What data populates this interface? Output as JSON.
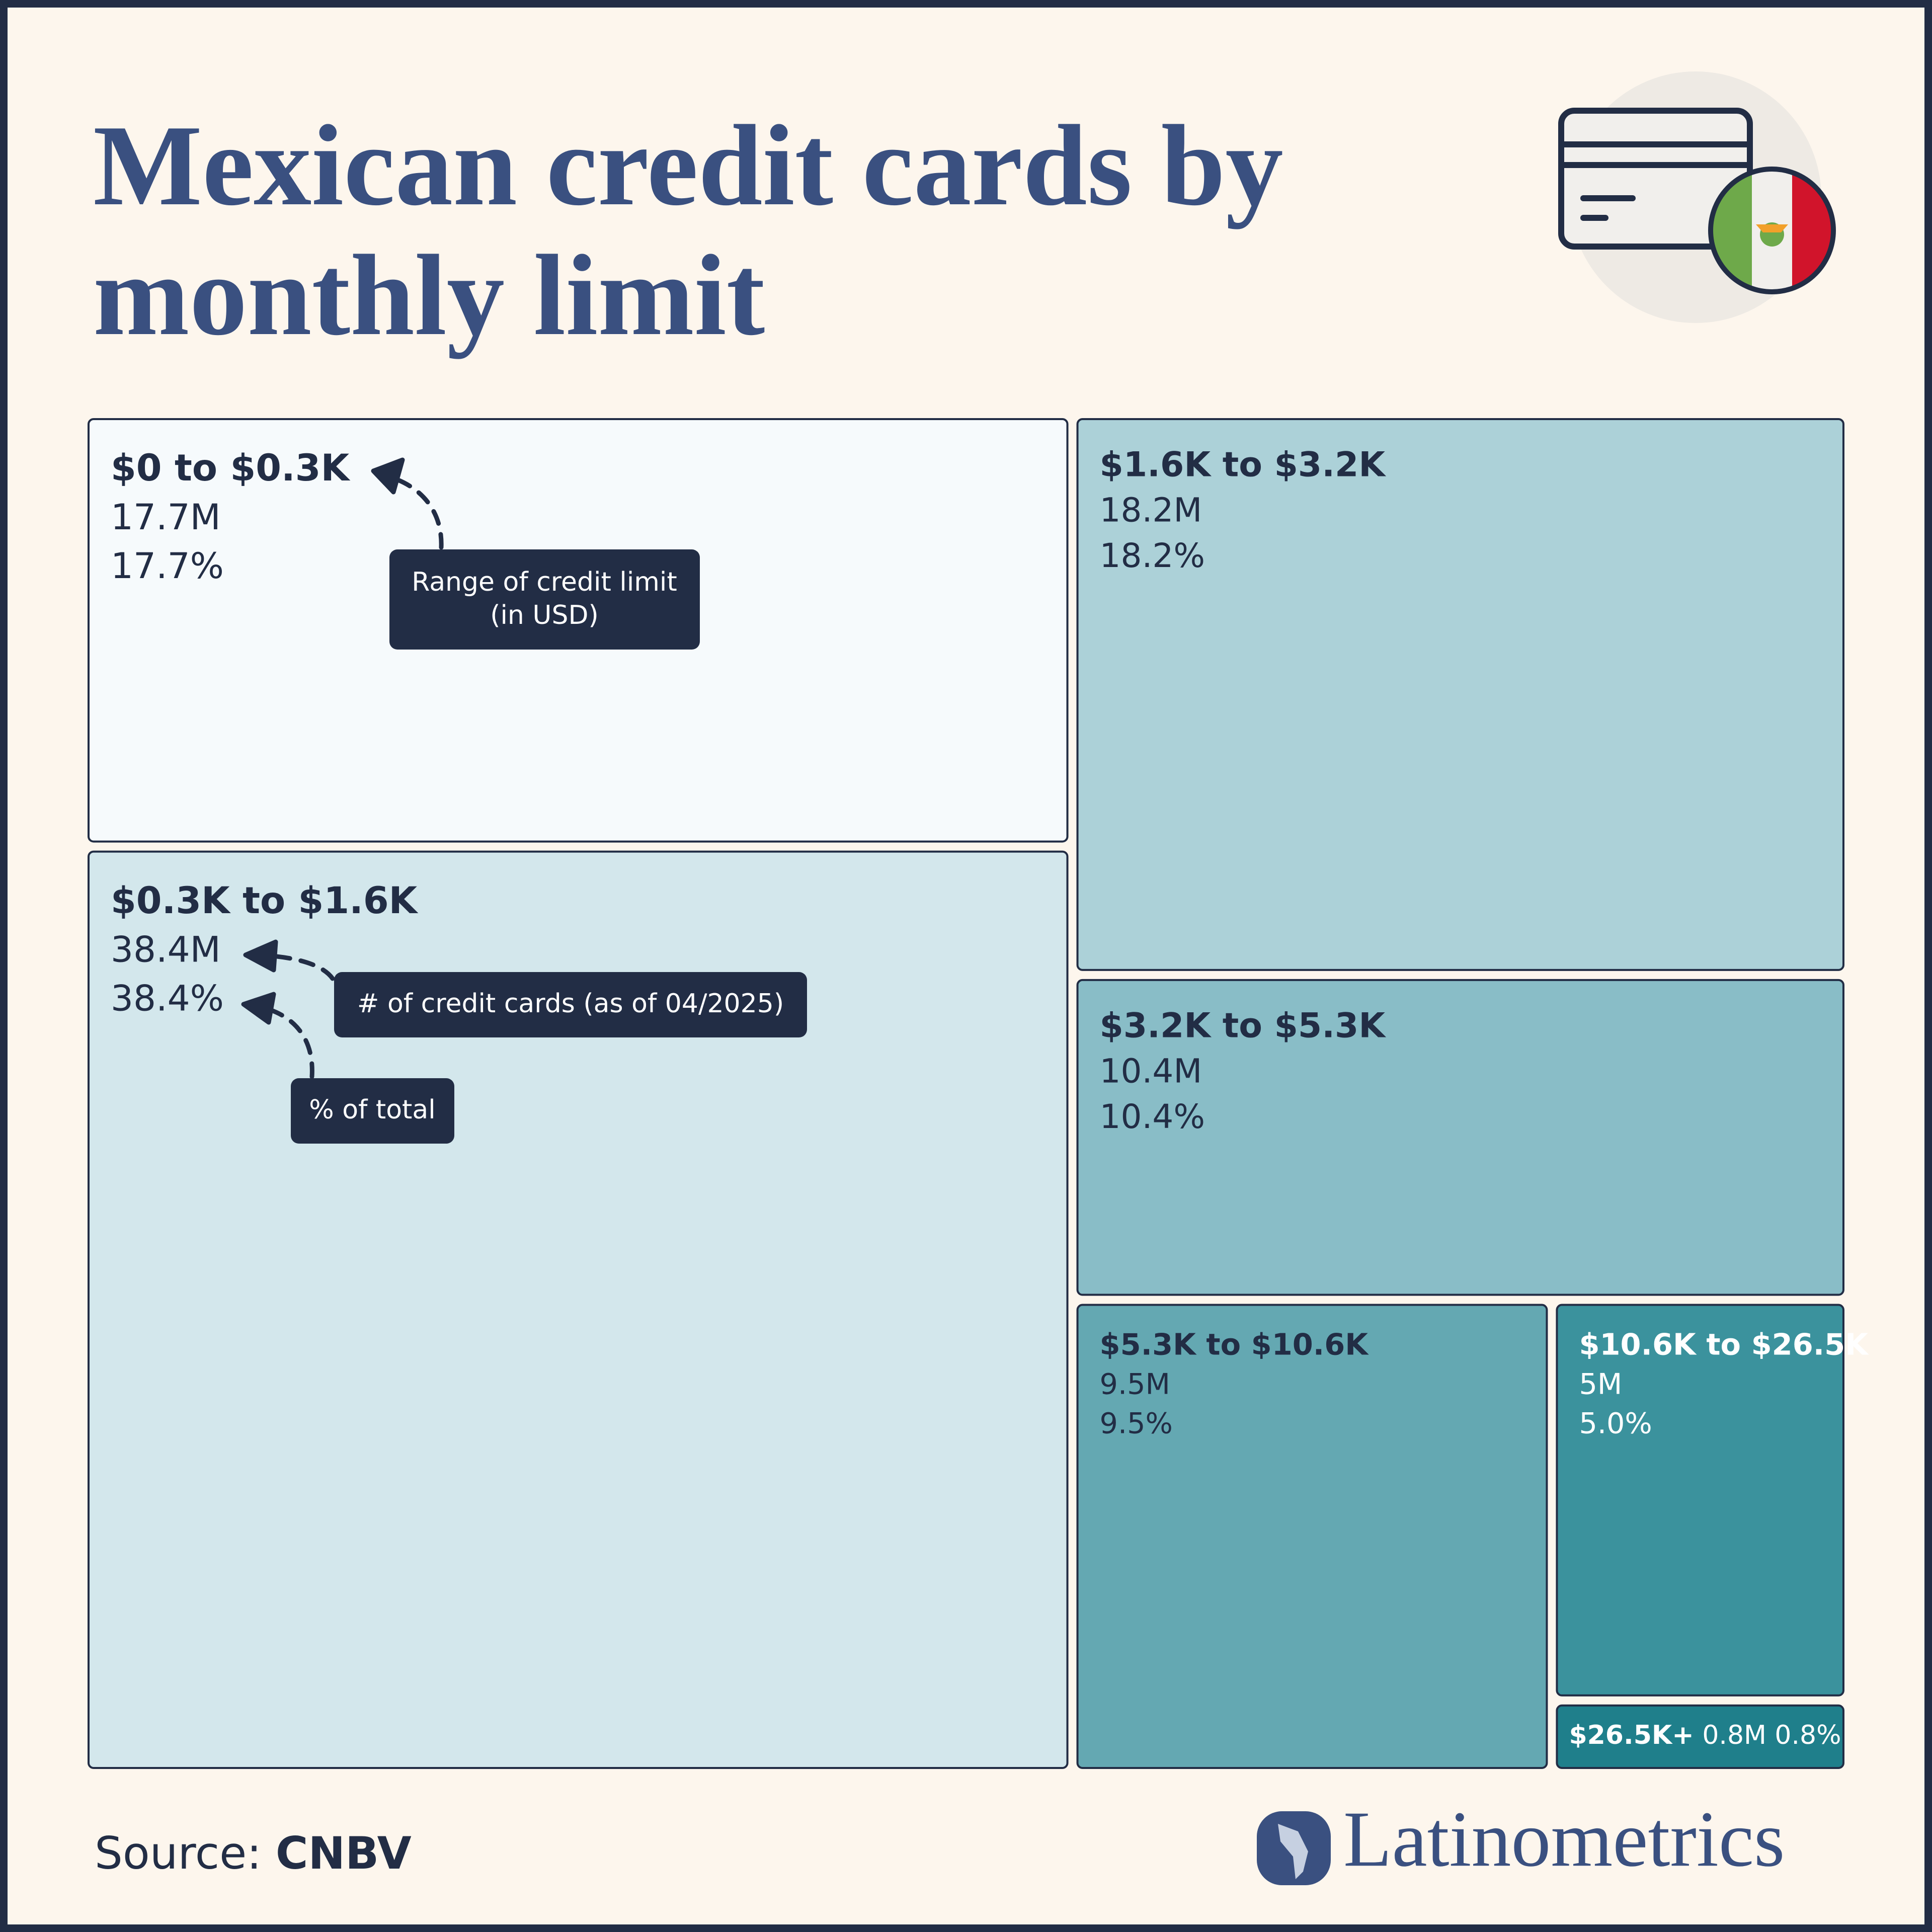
{
  "chart_data": {
    "type": "treemap",
    "title": "Mexican credit cards by monthly limit",
    "categories": [
      "$0 to $0.3K",
      "$0.3K to $1.6K",
      "$1.6K to $3.2K",
      "$3.2K to $5.3K",
      "$5.3K to $10.6K",
      "$10.6K to $26.5K",
      "$26.5K+"
    ],
    "values": [
      17.7,
      38.4,
      18.2,
      10.4,
      9.5,
      5,
      0.8
    ],
    "value_labels": [
      "17.7M",
      "38.4M",
      "18.2M",
      "10.4M",
      "9.5M",
      "5M",
      "0.8M"
    ],
    "shares": [
      17.7,
      38.4,
      18.2,
      10.4,
      9.5,
      5.0,
      0.8
    ],
    "share_labels": [
      "17.7%",
      "38.4%",
      "18.2%",
      "10.4%",
      "9.5%",
      "5.0%",
      "0.8%"
    ],
    "colors": [
      "#f6fafc",
      "#d3e7ec",
      "#acd1d8",
      "#89bdc7",
      "#64a8b2",
      "#3b929d",
      "#1f7f8b"
    ],
    "annotations": {
      "range": [
        "Range of credit limit",
        "(in USD)"
      ],
      "count": "# of credit cards (as of 04/2025)",
      "share": "% of total"
    },
    "source_label": "Source:",
    "source": "CNBV",
    "brand": "Latinometrics"
  }
}
